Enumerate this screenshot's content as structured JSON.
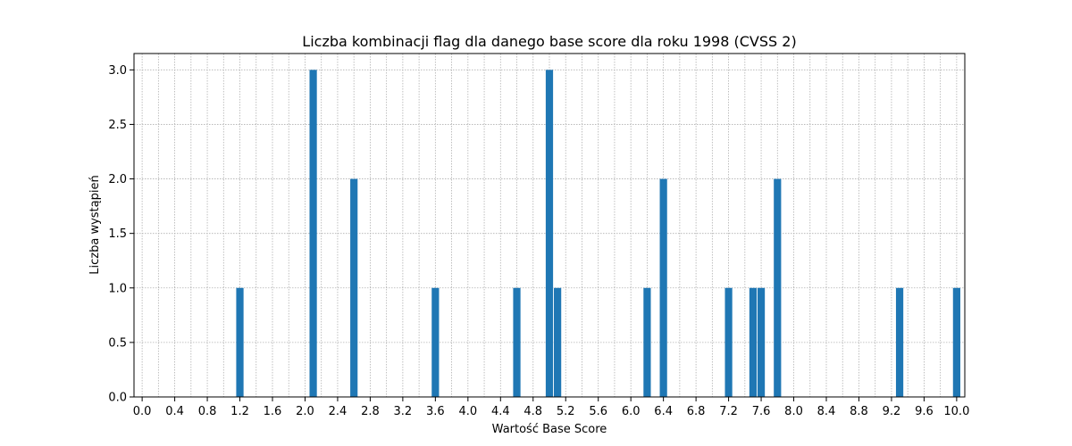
{
  "chart_data": {
    "type": "bar",
    "title": "Liczba kombinacji flag dla danego base score dla roku 1998 (CVSS 2)",
    "xlabel": "Wartość Base Score",
    "ylabel": "Liczba wystąpień",
    "xlim": [
      -0.1,
      10.1
    ],
    "ylim": [
      0,
      3.15
    ],
    "bar_width": 0.09,
    "grid": true,
    "x": [
      1.2,
      2.1,
      2.6,
      3.6,
      4.6,
      5.0,
      5.1,
      6.2,
      6.4,
      7.2,
      7.5,
      7.6,
      7.8,
      9.3,
      10.0
    ],
    "values": [
      1,
      3,
      2,
      1,
      1,
      3,
      1,
      1,
      2,
      1,
      1,
      1,
      2,
      1,
      1
    ],
    "x_ticks": [
      "0.0",
      "0.4",
      "0.8",
      "1.2",
      "1.6",
      "2.0",
      "2.4",
      "2.8",
      "3.2",
      "3.6",
      "4.0",
      "4.4",
      "4.8",
      "5.2",
      "5.6",
      "6.0",
      "6.4",
      "6.8",
      "7.2",
      "7.6",
      "8.0",
      "8.4",
      "8.8",
      "9.2",
      "9.6",
      "10.0"
    ],
    "y_ticks": [
      "0.0",
      "0.5",
      "1.0",
      "1.5",
      "2.0",
      "2.5",
      "3.0"
    ],
    "x_grid_step": 0.2,
    "bar_color": "#1f77b4"
  }
}
